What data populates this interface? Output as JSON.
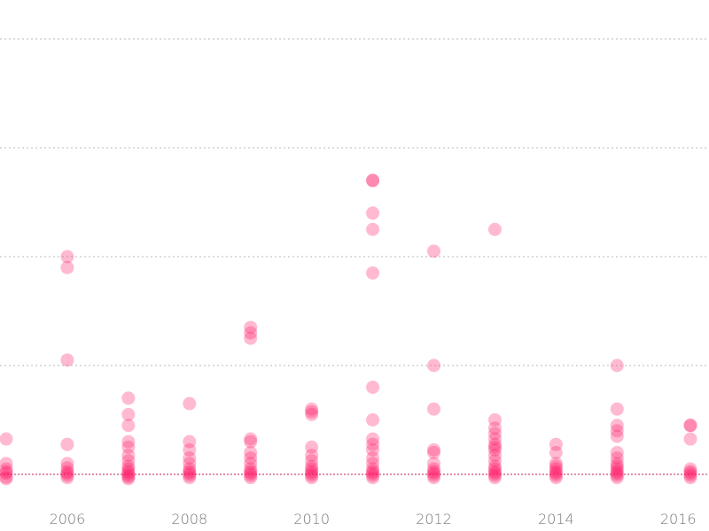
{
  "chart_data": {
    "type": "scatter",
    "title": "",
    "xlabel": "",
    "ylabel": "",
    "xlim": [
      2005,
      2016.3
    ],
    "ylim": [
      -0.15,
      8
    ],
    "grid_y": [
      0,
      2,
      4,
      6,
      8
    ],
    "grid": true,
    "x_ticks": [
      2006,
      2008,
      2010,
      2012,
      2014,
      2016
    ],
    "x_tick_labels": [
      "2006",
      "2008",
      "2010",
      "2012",
      "2014",
      "2016"
    ],
    "colors": {
      "point": "#ff1a66",
      "grid": "#b9b9b9",
      "baseline": "#c2185b",
      "tick_text": "#7a7a7a"
    },
    "point_opacity": 0.3,
    "points": [
      {
        "x": 2005,
        "y": 0.65
      },
      {
        "x": 2005,
        "y": 0.2
      },
      {
        "x": 2005,
        "y": 0.1
      },
      {
        "x": 2005,
        "y": 0.05
      },
      {
        "x": 2005,
        "y": 0.02
      },
      {
        "x": 2005,
        "y": -0.05
      },
      {
        "x": 2005,
        "y": -0.08
      },
      {
        "x": 2006,
        "y": 4.0
      },
      {
        "x": 2006,
        "y": 3.8
      },
      {
        "x": 2006,
        "y": 2.1
      },
      {
        "x": 2006,
        "y": 0.55
      },
      {
        "x": 2006,
        "y": 0.2
      },
      {
        "x": 2006,
        "y": 0.12
      },
      {
        "x": 2006,
        "y": 0.05
      },
      {
        "x": 2006,
        "y": 0.02
      },
      {
        "x": 2006,
        "y": -0.02
      },
      {
        "x": 2006,
        "y": -0.06
      },
      {
        "x": 2007,
        "y": 1.4
      },
      {
        "x": 2007,
        "y": 1.1
      },
      {
        "x": 2007,
        "y": 0.9
      },
      {
        "x": 2007,
        "y": 0.6
      },
      {
        "x": 2007,
        "y": 0.5
      },
      {
        "x": 2007,
        "y": 0.35
      },
      {
        "x": 2007,
        "y": 0.25
      },
      {
        "x": 2007,
        "y": 0.15
      },
      {
        "x": 2007,
        "y": 0.1
      },
      {
        "x": 2007,
        "y": 0.05
      },
      {
        "x": 2007,
        "y": 0.02
      },
      {
        "x": 2007,
        "y": -0.02
      },
      {
        "x": 2007,
        "y": -0.05
      },
      {
        "x": 2007,
        "y": -0.08
      },
      {
        "x": 2008,
        "y": 1.3
      },
      {
        "x": 2008,
        "y": 0.6
      },
      {
        "x": 2008,
        "y": 0.45
      },
      {
        "x": 2008,
        "y": 0.3
      },
      {
        "x": 2008,
        "y": 0.2
      },
      {
        "x": 2008,
        "y": 0.1
      },
      {
        "x": 2008,
        "y": 0.05
      },
      {
        "x": 2008,
        "y": 0.02
      },
      {
        "x": 2008,
        "y": -0.02
      },
      {
        "x": 2008,
        "y": -0.06
      },
      {
        "x": 2009,
        "y": 2.7
      },
      {
        "x": 2009,
        "y": 2.6
      },
      {
        "x": 2009,
        "y": 2.5
      },
      {
        "x": 2009,
        "y": 0.65
      },
      {
        "x": 2009,
        "y": 0.6
      },
      {
        "x": 2009,
        "y": 0.4
      },
      {
        "x": 2009,
        "y": 0.3
      },
      {
        "x": 2009,
        "y": 0.2
      },
      {
        "x": 2009,
        "y": 0.1
      },
      {
        "x": 2009,
        "y": 0.05
      },
      {
        "x": 2009,
        "y": 0.02
      },
      {
        "x": 2009,
        "y": -0.02
      },
      {
        "x": 2009,
        "y": -0.06
      },
      {
        "x": 2010,
        "y": 1.2
      },
      {
        "x": 2010,
        "y": 1.15
      },
      {
        "x": 2010,
        "y": 1.1
      },
      {
        "x": 2010,
        "y": 0.5
      },
      {
        "x": 2010,
        "y": 0.35
      },
      {
        "x": 2010,
        "y": 0.25
      },
      {
        "x": 2010,
        "y": 0.15
      },
      {
        "x": 2010,
        "y": 0.1
      },
      {
        "x": 2010,
        "y": 0.05
      },
      {
        "x": 2010,
        "y": 0.02
      },
      {
        "x": 2010,
        "y": -0.02
      },
      {
        "x": 2010,
        "y": -0.06
      },
      {
        "x": 2011,
        "y": 5.4
      },
      {
        "x": 2011,
        "y": 5.4
      },
      {
        "x": 2011,
        "y": 4.8
      },
      {
        "x": 2011,
        "y": 4.5
      },
      {
        "x": 2011,
        "y": 3.7
      },
      {
        "x": 2011,
        "y": 1.6
      },
      {
        "x": 2011,
        "y": 1.0
      },
      {
        "x": 2011,
        "y": 0.65
      },
      {
        "x": 2011,
        "y": 0.55
      },
      {
        "x": 2011,
        "y": 0.45
      },
      {
        "x": 2011,
        "y": 0.3
      },
      {
        "x": 2011,
        "y": 0.2
      },
      {
        "x": 2011,
        "y": 0.1
      },
      {
        "x": 2011,
        "y": 0.05
      },
      {
        "x": 2011,
        "y": 0.02
      },
      {
        "x": 2011,
        "y": -0.02
      },
      {
        "x": 2011,
        "y": -0.06
      },
      {
        "x": 2012,
        "y": 4.1
      },
      {
        "x": 2012,
        "y": 2.0
      },
      {
        "x": 2012,
        "y": 1.2
      },
      {
        "x": 2012,
        "y": 0.45
      },
      {
        "x": 2012,
        "y": 0.4
      },
      {
        "x": 2012,
        "y": 0.2
      },
      {
        "x": 2012,
        "y": 0.1
      },
      {
        "x": 2012,
        "y": 0.05
      },
      {
        "x": 2012,
        "y": 0.02
      },
      {
        "x": 2012,
        "y": -0.02
      },
      {
        "x": 2012,
        "y": -0.06
      },
      {
        "x": 2013,
        "y": 4.5
      },
      {
        "x": 2013,
        "y": 1.0
      },
      {
        "x": 2013,
        "y": 0.85
      },
      {
        "x": 2013,
        "y": 0.75
      },
      {
        "x": 2013,
        "y": 0.65
      },
      {
        "x": 2013,
        "y": 0.55
      },
      {
        "x": 2013,
        "y": 0.5
      },
      {
        "x": 2013,
        "y": 0.45
      },
      {
        "x": 2013,
        "y": 0.35
      },
      {
        "x": 2013,
        "y": 0.25
      },
      {
        "x": 2013,
        "y": 0.15
      },
      {
        "x": 2013,
        "y": 0.1
      },
      {
        "x": 2013,
        "y": 0.05
      },
      {
        "x": 2013,
        "y": 0.02
      },
      {
        "x": 2013,
        "y": -0.02
      },
      {
        "x": 2013,
        "y": -0.06
      },
      {
        "x": 2014,
        "y": 0.55
      },
      {
        "x": 2014,
        "y": 0.4
      },
      {
        "x": 2014,
        "y": 0.2
      },
      {
        "x": 2014,
        "y": 0.15
      },
      {
        "x": 2014,
        "y": 0.1
      },
      {
        "x": 2014,
        "y": 0.05
      },
      {
        "x": 2014,
        "y": 0.02
      },
      {
        "x": 2014,
        "y": -0.02
      },
      {
        "x": 2014,
        "y": -0.06
      },
      {
        "x": 2015,
        "y": 2.0
      },
      {
        "x": 2015,
        "y": 1.2
      },
      {
        "x": 2015,
        "y": 0.9
      },
      {
        "x": 2015,
        "y": 0.8
      },
      {
        "x": 2015,
        "y": 0.7
      },
      {
        "x": 2015,
        "y": 0.4
      },
      {
        "x": 2015,
        "y": 0.3
      },
      {
        "x": 2015,
        "y": 0.2
      },
      {
        "x": 2015,
        "y": 0.15
      },
      {
        "x": 2015,
        "y": 0.1
      },
      {
        "x": 2015,
        "y": 0.05
      },
      {
        "x": 2015,
        "y": 0.02
      },
      {
        "x": 2015,
        "y": -0.02
      },
      {
        "x": 2015,
        "y": -0.06
      },
      {
        "x": 2016.2,
        "y": 0.9
      },
      {
        "x": 2016.2,
        "y": 0.9
      },
      {
        "x": 2016.2,
        "y": 0.65
      },
      {
        "x": 2016.2,
        "y": 0.1
      },
      {
        "x": 2016.2,
        "y": 0.05
      },
      {
        "x": 2016.2,
        "y": 0.02
      },
      {
        "x": 2016.2,
        "y": -0.02
      },
      {
        "x": 2016.2,
        "y": -0.06
      }
    ]
  }
}
